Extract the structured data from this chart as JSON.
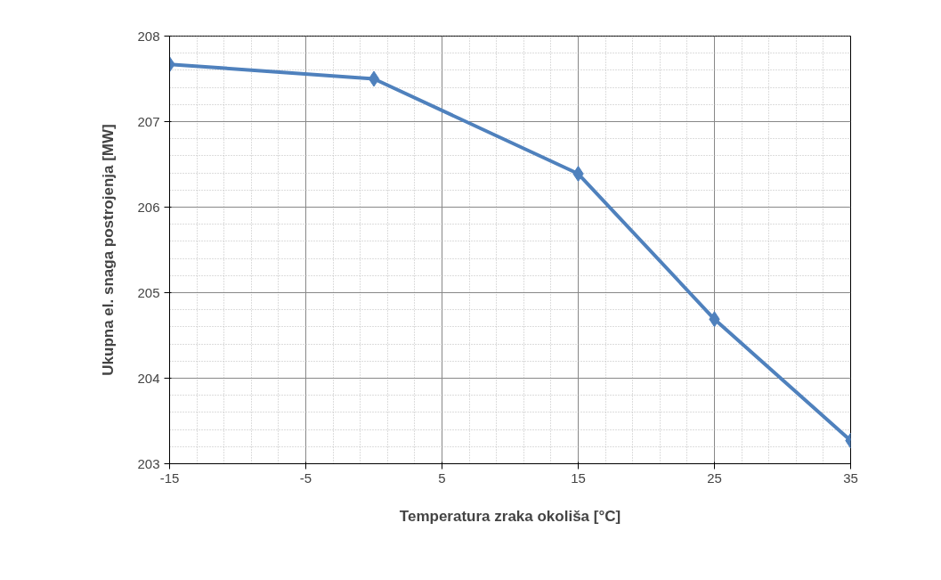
{
  "chart_data": {
    "type": "line",
    "xlabel": "Temperatura zraka okoliša [°C]",
    "ylabel": "Ukupna el. snaga postrojenja [MW]",
    "x": [
      -15,
      0,
      15,
      25,
      35
    ],
    "series": [
      {
        "color": "#4f81bd",
        "values": [
          207.67,
          207.5,
          206.39,
          204.69,
          203.27
        ]
      }
    ],
    "xlim": [
      -15,
      35
    ],
    "xticks": [
      -15,
      -5,
      5,
      15,
      25,
      35
    ],
    "ylim": [
      203,
      208
    ],
    "yticks": [
      203,
      204,
      205,
      206,
      207,
      208
    ],
    "grid": true,
    "marker": "diamond",
    "line_style": "solid"
  }
}
